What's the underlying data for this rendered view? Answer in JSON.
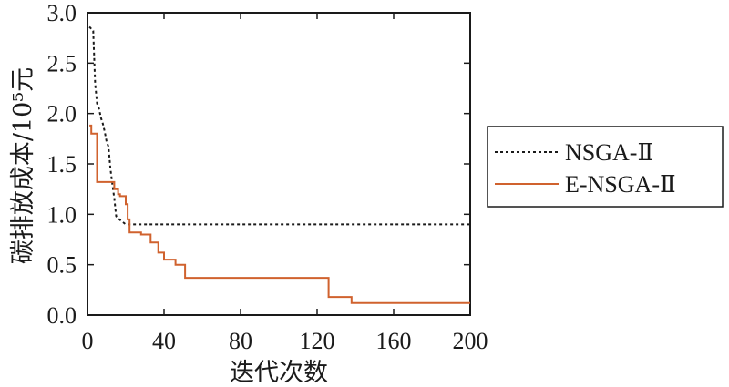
{
  "chart_data": {
    "type": "line",
    "title": "",
    "xlabel": "迭代次数",
    "ylabel": "碳排放成本/10⁵元",
    "xlim": [
      0,
      200
    ],
    "ylim": [
      0,
      3.0
    ],
    "xticks": [
      0,
      40,
      80,
      120,
      160,
      200
    ],
    "xtick_labels": [
      "0",
      "40",
      "80",
      "120",
      "160",
      "200"
    ],
    "yticks": [
      0,
      0.5,
      1.0,
      1.5,
      2.0,
      2.5,
      3.0
    ],
    "ytick_labels": [
      "0.0",
      "0.5",
      "1.0",
      "1.5",
      "2.0",
      "2.5",
      "3.0"
    ],
    "grid": false,
    "legend_position": "outside-right",
    "series": [
      {
        "name": "NSGA-Ⅱ",
        "color": "#1a1a1a",
        "style": "dotted",
        "x": [
          1,
          2,
          3,
          4,
          5,
          6,
          7,
          8,
          9,
          10,
          11,
          12,
          13,
          14,
          15,
          16,
          20,
          200
        ],
        "y": [
          2.86,
          2.84,
          2.82,
          2.3,
          2.1,
          2.05,
          1.96,
          1.9,
          1.82,
          1.72,
          1.67,
          1.45,
          1.3,
          1.16,
          0.98,
          0.96,
          0.9,
          0.9
        ]
      },
      {
        "name": "E-NSGA-Ⅱ",
        "color": "#d0622e",
        "style": "solid",
        "x": [
          1,
          2,
          2,
          5,
          5,
          14,
          14,
          16,
          16,
          17,
          17,
          20,
          20,
          21,
          21,
          22,
          22,
          28,
          28,
          33,
          33,
          37,
          37,
          40,
          40,
          46,
          46,
          51,
          51,
          126,
          126,
          138,
          138,
          200
        ],
        "y": [
          1.88,
          1.88,
          1.8,
          1.8,
          1.32,
          1.32,
          1.25,
          1.25,
          1.2,
          1.2,
          1.18,
          1.18,
          1.1,
          1.1,
          0.95,
          0.95,
          0.82,
          0.82,
          0.8,
          0.8,
          0.72,
          0.72,
          0.62,
          0.62,
          0.55,
          0.55,
          0.5,
          0.5,
          0.37,
          0.37,
          0.18,
          0.18,
          0.12,
          0.12
        ]
      }
    ]
  }
}
